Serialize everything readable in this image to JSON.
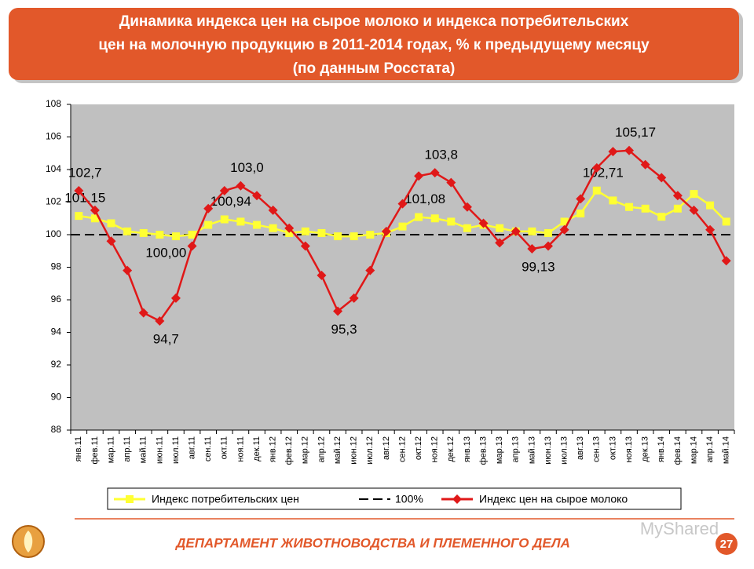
{
  "chart_data": {
    "type": "line",
    "title": [
      "Динамика индекса цен на сырое молоко и индекса потребительских",
      "цен на молочную продукцию в 2011-2014 годах, % к предыдущему месяцу",
      "(по данным Росстата)"
    ],
    "categories": [
      "янв.11",
      "фев.11",
      "мар.11",
      "апр.11",
      "май.11",
      "июн.11",
      "июл.11",
      "авг.11",
      "сен.11",
      "окт.11",
      "ноя.11",
      "дек.11",
      "янв.12",
      "фев.12",
      "мар.12",
      "апр.12",
      "май.12",
      "июн.12",
      "июл.12",
      "авг.12",
      "сен.12",
      "окт.12",
      "ноя.12",
      "дек.12",
      "янв.13",
      "фев.13",
      "мар.13",
      "апр.13",
      "май.13",
      "июн.13",
      "июл.13",
      "авг.13",
      "сен.13",
      "окт.13",
      "ноя.13",
      "дек.13",
      "янв.14",
      "фев.14",
      "мар.14",
      "апр.14",
      "май.14"
    ],
    "series": [
      {
        "name": "Индекс потребительских цен",
        "color": "#ffff33",
        "marker": "square",
        "values": [
          101.15,
          101.0,
          100.7,
          100.2,
          100.1,
          100.0,
          99.9,
          100.0,
          100.6,
          100.94,
          100.8,
          100.6,
          100.4,
          100.1,
          100.2,
          100.1,
          99.9,
          99.9,
          100.0,
          100.1,
          100.5,
          101.08,
          101.0,
          100.8,
          100.4,
          100.6,
          100.4,
          100.2,
          100.2,
          100.1,
          100.8,
          101.3,
          102.71,
          102.1,
          101.7,
          101.6,
          101.1,
          101.6,
          102.5,
          101.8,
          100.8
        ],
        "value_labels": [
          "101,15",
          null,
          null,
          null,
          null,
          "100,00",
          null,
          null,
          null,
          "100,94",
          null,
          null,
          null,
          null,
          null,
          null,
          null,
          null,
          null,
          null,
          null,
          "101,08",
          null,
          null,
          null,
          null,
          null,
          null,
          null,
          null,
          null,
          null,
          "102,71",
          null,
          null,
          null,
          null,
          null,
          null,
          null,
          null
        ]
      },
      {
        "name": "Индекс цен на сырое молоко",
        "color": "#e01818",
        "marker": "diamond",
        "values": [
          102.7,
          101.5,
          99.6,
          97.8,
          95.2,
          94.7,
          96.1,
          99.3,
          101.6,
          102.7,
          103.0,
          102.4,
          101.5,
          100.4,
          99.3,
          97.5,
          95.3,
          96.1,
          97.8,
          100.2,
          101.9,
          103.6,
          103.8,
          103.2,
          101.7,
          100.7,
          99.5,
          100.2,
          99.13,
          99.3,
          100.3,
          102.2,
          104.1,
          105.1,
          105.17,
          104.3,
          103.5,
          102.4,
          101.5,
          100.3,
          98.4
        ],
        "value_labels": [
          "102,7",
          null,
          null,
          null,
          null,
          "94,7",
          null,
          null,
          null,
          null,
          "103,0",
          null,
          null,
          null,
          null,
          null,
          "95,3",
          null,
          null,
          null,
          null,
          null,
          "103,8",
          null,
          null,
          null,
          null,
          null,
          "99,13",
          null,
          null,
          null,
          null,
          null,
          "105,17",
          null,
          null,
          null,
          null,
          null,
          null
        ]
      }
    ],
    "reference": {
      "name": "100%",
      "value": 100,
      "color": "#000000"
    },
    "ylim": [
      88,
      108
    ],
    "yticks": [
      88,
      90,
      92,
      94,
      96,
      98,
      100,
      102,
      104,
      106,
      108
    ],
    "plot_background": "#c0c0c0"
  },
  "footer": {
    "department": "ДЕПАРТАМЕНТ ЖИВОТНОВОДСТВА И ПЛЕМЕННОГО ДЕЛА",
    "page": "27",
    "watermark": "MyShared"
  }
}
